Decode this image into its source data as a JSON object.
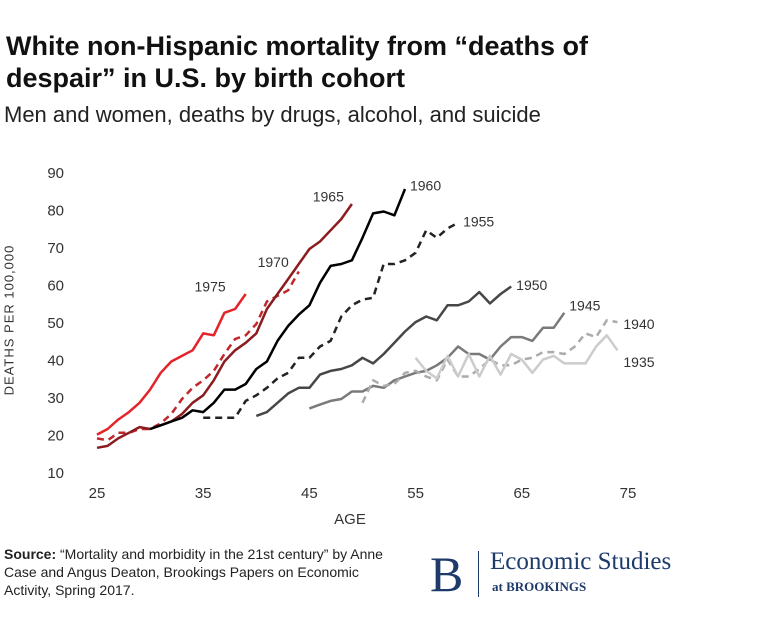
{
  "chart_data": {
    "type": "line",
    "title": "White non-Hispanic mortality from “deaths of despair” in U.S. by birth cohort",
    "subtitle": "Men and women, deaths by drugs, alcohol, and suicide",
    "xlabel": "AGE",
    "ylabel": "DEATHS PER 100,000",
    "xlim": [
      25,
      75
    ],
    "xticks": [
      25,
      35,
      45,
      55,
      65,
      75
    ],
    "ylim": [
      10,
      90
    ],
    "yticks": [
      10,
      20,
      30,
      40,
      50,
      60,
      70,
      80,
      90
    ],
    "grid": false,
    "series": [
      {
        "name": "1975",
        "color": "#e3242b",
        "dashed": false,
        "x": [
          25,
          26,
          27,
          28,
          29,
          30,
          31,
          32,
          33,
          34,
          35,
          36,
          37,
          38,
          39
        ],
        "values": [
          20.5,
          22,
          24.5,
          26.5,
          29,
          32.5,
          37,
          40,
          41.5,
          43,
          47.5,
          47,
          53,
          54,
          58
        ]
      },
      {
        "name": "1970",
        "color": "#c1272d",
        "dashed": true,
        "x": [
          25,
          26,
          27,
          28,
          29,
          30,
          31,
          32,
          33,
          34,
          35,
          36,
          37,
          38,
          39,
          40,
          41,
          42,
          43,
          44
        ],
        "values": [
          19.5,
          19,
          21,
          21,
          22,
          22,
          23.5,
          26,
          30,
          33,
          35,
          37.5,
          42,
          46,
          47,
          50,
          56,
          57.5,
          59,
          64
        ]
      },
      {
        "name": "1965",
        "color": "#8c1c1f",
        "dashed": false,
        "x": [
          25,
          26,
          27,
          28,
          29,
          30,
          31,
          32,
          33,
          34,
          35,
          36,
          37,
          38,
          39,
          40,
          41,
          42,
          43,
          44,
          45,
          46,
          47,
          48,
          49
        ],
        "values": [
          17,
          17.5,
          19.5,
          21,
          22.5,
          22,
          23,
          24,
          26,
          29,
          31,
          35,
          40,
          43,
          45,
          47.5,
          54,
          58,
          62,
          66,
          70,
          72,
          75,
          78,
          82
        ]
      },
      {
        "name": "1960",
        "color": "#000000",
        "dashed": false,
        "x": [
          30,
          31,
          32,
          33,
          34,
          35,
          36,
          37,
          38,
          39,
          40,
          41,
          42,
          43,
          44,
          45,
          46,
          47,
          48,
          49,
          50,
          51,
          52,
          53,
          54
        ],
        "values": [
          22,
          23,
          24,
          25,
          27,
          26.5,
          29,
          32.5,
          32.5,
          34,
          38,
          40,
          45.5,
          49.5,
          52.5,
          55,
          61,
          65.5,
          66,
          67,
          73,
          79.5,
          80,
          79,
          86
        ]
      },
      {
        "name": "1955",
        "color": "#222222",
        "dashed": true,
        "x": [
          35,
          36,
          37,
          38,
          39,
          40,
          41,
          42,
          43,
          44,
          45,
          46,
          47,
          48,
          49,
          50,
          51,
          52,
          53,
          54,
          55,
          56,
          57,
          58,
          59
        ],
        "values": [
          25,
          25,
          25,
          25,
          29.5,
          31,
          33,
          35.5,
          37,
          41,
          41,
          44,
          45.5,
          52,
          55,
          56.5,
          57,
          66,
          66,
          67,
          69,
          75,
          73,
          75.5,
          77
        ]
      },
      {
        "name": "1950",
        "color": "#474747",
        "dashed": false,
        "x": [
          40,
          41,
          42,
          43,
          44,
          45,
          46,
          47,
          48,
          49,
          50,
          51,
          52,
          53,
          54,
          55,
          56,
          57,
          58,
          59,
          60,
          61,
          62,
          63,
          64
        ],
        "values": [
          25.5,
          26.5,
          29,
          31.5,
          33,
          33,
          36.5,
          37.5,
          38,
          39,
          41,
          39.5,
          42,
          45,
          48,
          50.5,
          52,
          51,
          55,
          55,
          56,
          58.5,
          55.5,
          58,
          60
        ]
      },
      {
        "name": "1945",
        "color": "#7a7a7a",
        "dashed": false,
        "x": [
          45,
          46,
          47,
          48,
          49,
          50,
          51,
          52,
          53,
          54,
          55,
          56,
          57,
          58,
          59,
          60,
          61,
          62,
          63,
          64,
          65,
          66,
          67,
          68,
          69
        ],
        "values": [
          27.5,
          28.5,
          29.5,
          30,
          32,
          32,
          33.5,
          33,
          35,
          36,
          37,
          37.5,
          39,
          41,
          44,
          42,
          42,
          40.5,
          44,
          46.5,
          46.5,
          45.5,
          49,
          49,
          53
        ]
      },
      {
        "name": "1940",
        "color": "#ababab",
        "dashed": true,
        "x": [
          50,
          51,
          52,
          53,
          54,
          55,
          56,
          57,
          58,
          59,
          60,
          61,
          62,
          63,
          64,
          65,
          66,
          67,
          68,
          69,
          70,
          71,
          72,
          73,
          74
        ],
        "values": [
          29,
          35,
          33.5,
          34,
          37,
          37.5,
          36,
          35,
          40.5,
          36,
          36,
          38,
          40.5,
          39,
          39,
          40.5,
          41,
          42.5,
          42.5,
          42,
          44,
          47.5,
          46.5,
          51,
          50.5
        ]
      },
      {
        "name": "1935",
        "color": "#cccccc",
        "dashed": false,
        "x": [
          55,
          56,
          57,
          58,
          59,
          60,
          61,
          62,
          63,
          64,
          65,
          66,
          67,
          68,
          69,
          70,
          71,
          72,
          73,
          74
        ],
        "values": [
          41,
          37.5,
          35.5,
          41.5,
          36,
          42,
          36,
          41.5,
          36.5,
          42,
          40.5,
          37,
          40.5,
          41.5,
          39.5,
          39.5,
          39.5,
          44,
          47,
          43
        ]
      }
    ]
  },
  "footer": {
    "source_label": "Source:",
    "source_text": "“Mortality and morbidity in the 21st century” by Anne Case and Angus Deaton, Brookings Papers on Economic Activity, Spring 2017.",
    "logo_letter": "B",
    "logo_name": "Economic Studies",
    "logo_sub": "at BROOKINGS"
  }
}
